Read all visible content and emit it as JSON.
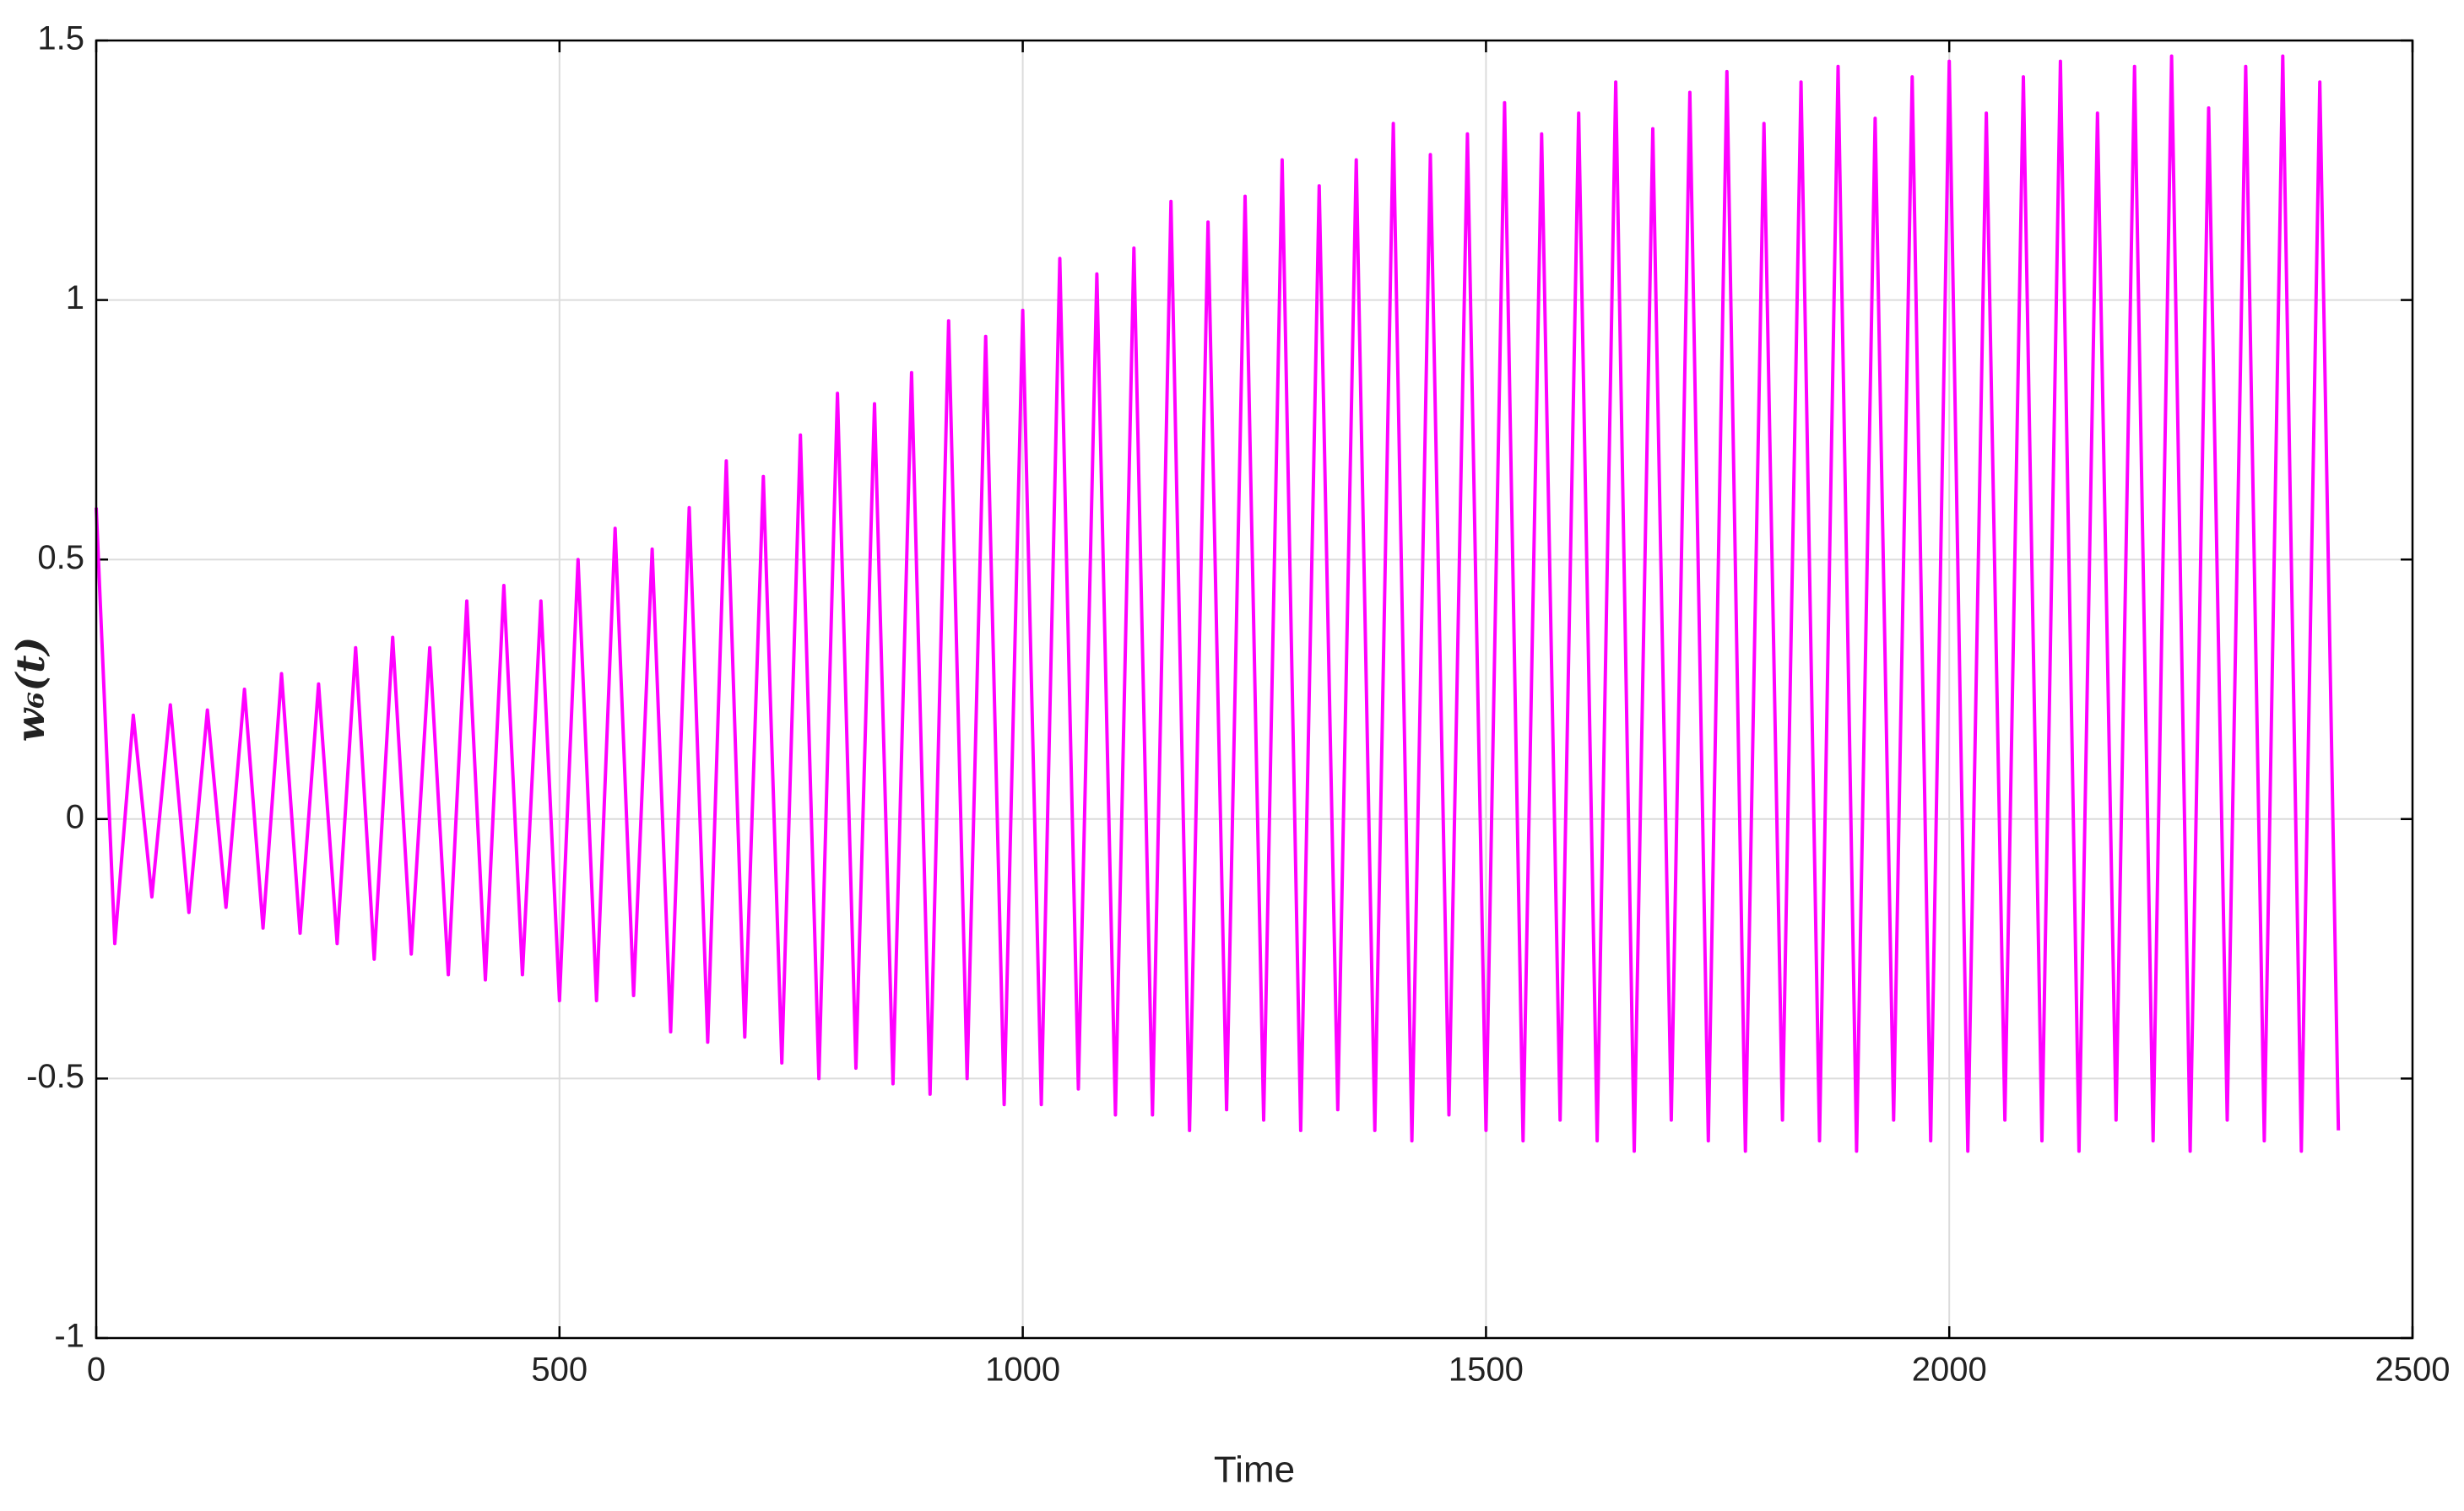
{
  "chart_data": {
    "type": "line",
    "x_label": "Time",
    "y_label": "w₆(t)",
    "color": "#ff00ff",
    "grid": true,
    "xlim": [
      0,
      2500
    ],
    "xticks": [
      0,
      500,
      1000,
      1500,
      2000,
      2500
    ],
    "ylim": [
      -1,
      1.5
    ],
    "yticks": [
      -1,
      -0.5,
      0,
      0.5,
      1,
      1.5
    ],
    "x": [
      0,
      20,
      40,
      60,
      80,
      100,
      120,
      140,
      160,
      180,
      200,
      220,
      240,
      260,
      280,
      300,
      320,
      340,
      360,
      380,
      400,
      420,
      440,
      460,
      480,
      500,
      520,
      540,
      560,
      580,
      600,
      620,
      640,
      660,
      680,
      700,
      720,
      740,
      760,
      780,
      800,
      820,
      840,
      860,
      880,
      900,
      920,
      940,
      960,
      980,
      1000,
      1020,
      1040,
      1060,
      1080,
      1100,
      1120,
      1140,
      1160,
      1180,
      1200,
      1220,
      1240,
      1260,
      1280,
      1300,
      1320,
      1340,
      1360,
      1380,
      1400,
      1420,
      1440,
      1460,
      1480,
      1500,
      1520,
      1540,
      1560,
      1580,
      1600,
      1620,
      1640,
      1660,
      1680,
      1700,
      1720,
      1740,
      1760,
      1780,
      1800,
      1820,
      1840,
      1860,
      1880,
      1900,
      1920,
      1940,
      1960,
      1980,
      2000,
      2020,
      2040,
      2060,
      2080,
      2100,
      2120,
      2140,
      2160,
      2180,
      2200,
      2220,
      2240,
      2260,
      2280,
      2300,
      2320,
      2340,
      2360,
      2380,
      2400,
      2420
    ],
    "values": [
      0.6,
      -0.24,
      0.2,
      -0.15,
      0.22,
      -0.18,
      0.21,
      -0.17,
      0.25,
      -0.21,
      0.28,
      -0.22,
      0.26,
      -0.24,
      0.33,
      -0.27,
      0.35,
      -0.26,
      0.33,
      -0.3,
      0.42,
      -0.31,
      0.45,
      -0.3,
      0.42,
      -0.35,
      0.5,
      -0.35,
      0.56,
      -0.34,
      0.52,
      -0.41,
      0.6,
      -0.43,
      0.69,
      -0.42,
      0.66,
      -0.47,
      0.74,
      -0.5,
      0.82,
      -0.48,
      0.8,
      -0.51,
      0.86,
      -0.53,
      0.96,
      -0.5,
      0.93,
      -0.55,
      0.98,
      -0.55,
      1.08,
      -0.52,
      1.05,
      -0.57,
      1.1,
      -0.57,
      1.19,
      -0.6,
      1.15,
      -0.56,
      1.2,
      -0.58,
      1.27,
      -0.6,
      1.22,
      -0.56,
      1.27,
      -0.6,
      1.34,
      -0.62,
      1.28,
      -0.57,
      1.32,
      -0.6,
      1.38,
      -0.62,
      1.32,
      -0.58,
      1.36,
      -0.62,
      1.42,
      -0.64,
      1.33,
      -0.58,
      1.4,
      -0.62,
      1.44,
      -0.64,
      1.34,
      -0.58,
      1.42,
      -0.62,
      1.45,
      -0.64,
      1.35,
      -0.58,
      1.43,
      -0.62,
      1.46,
      -0.64,
      1.36,
      -0.58,
      1.43,
      -0.62,
      1.46,
      -0.64,
      1.36,
      -0.58,
      1.45,
      -0.62,
      1.47,
      -0.64,
      1.37,
      -0.58,
      1.45,
      -0.62,
      1.47,
      -0.64,
      1.42,
      -0.6
    ]
  }
}
